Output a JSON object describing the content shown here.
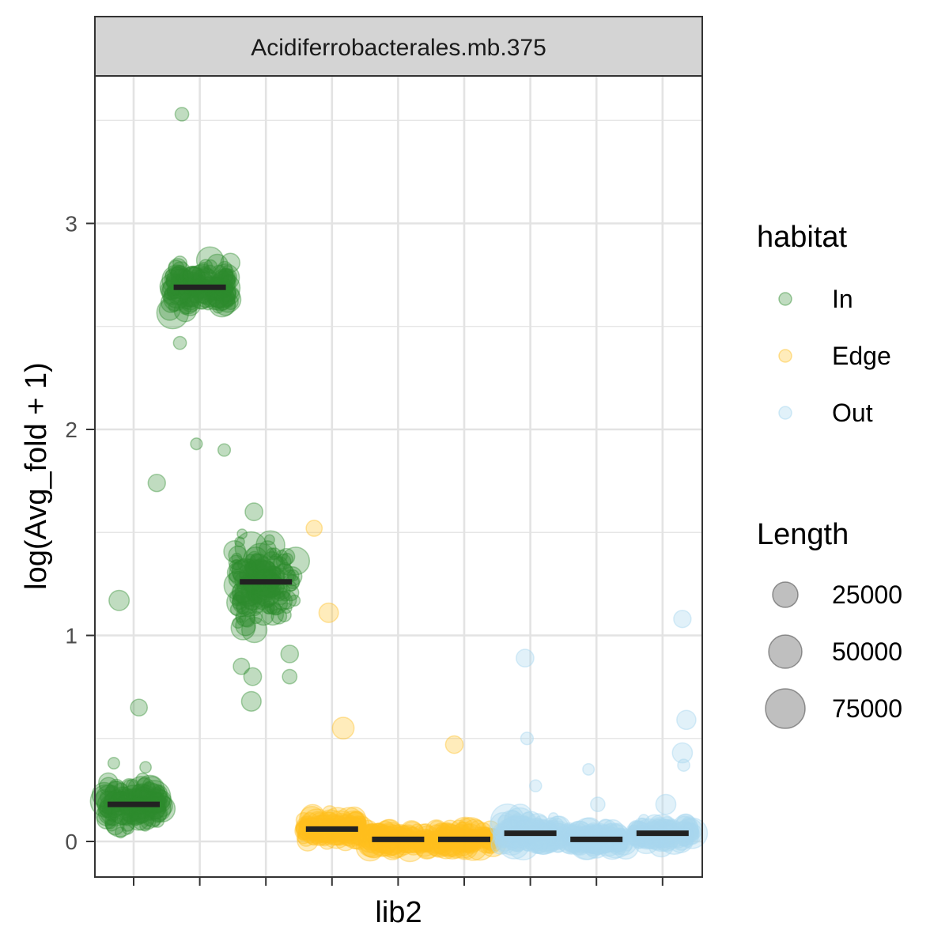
{
  "chart_data": {
    "type": "scatter",
    "facet_title": "Acidiferrobacterales.mb.375",
    "xlabel": "lib2",
    "ylabel": "log(Avg_fold + 1)",
    "categories": [
      "",
      "",
      "",
      "",
      "",
      "",
      "",
      "",
      ""
    ],
    "y_ticks": [
      0,
      1,
      2,
      3
    ],
    "y_tick_labels": [
      "0",
      "1",
      "2",
      "3"
    ],
    "ylim": [
      -0.17,
      3.7
    ],
    "grid": true,
    "legend_position": "right",
    "colors": {
      "In": "#2e8b2e",
      "Edge": "#ffbf1f",
      "Out": "#a8d8ef",
      "median": "#222222",
      "panel_border": "#333333",
      "grid": "#e3e3e3",
      "strip_fill": "#d4d4d4"
    },
    "legend": {
      "habitat_title": "habitat",
      "habitat_entries": [
        "In",
        "Edge",
        "Out"
      ],
      "length_title": "Length",
      "length_entries": [
        "25000",
        "50000",
        "75000"
      ]
    },
    "groups": [
      {
        "category_index": 0,
        "habitat": "In",
        "median": 0.18,
        "cluster_min": 0.01,
        "cluster_max": 0.3,
        "outliers": [
          [
            -0.22,
            1.17
          ],
          [
            0.08,
            0.65
          ],
          [
            -0.3,
            0.38
          ],
          [
            0.18,
            0.36
          ]
        ]
      },
      {
        "category_index": 1,
        "habitat": "In",
        "median": 2.69,
        "cluster_min": 2.5,
        "cluster_max": 2.85,
        "outliers": [
          [
            -0.27,
            3.53
          ],
          [
            -0.65,
            1.74
          ],
          [
            -0.05,
            1.93
          ],
          [
            0.37,
            1.9
          ],
          [
            -0.3,
            2.42
          ]
        ]
      },
      {
        "category_index": 2,
        "habitat": "In",
        "median": 1.26,
        "cluster_min": 0.98,
        "cluster_max": 1.55,
        "outliers": [
          [
            -0.18,
            1.6
          ],
          [
            -0.37,
            0.85
          ],
          [
            -0.2,
            0.8
          ],
          [
            -0.22,
            0.68
          ],
          [
            0.36,
            0.8
          ],
          [
            0.36,
            0.91
          ]
        ]
      },
      {
        "category_index": 3,
        "habitat": "Edge",
        "median": 0.06,
        "cluster_min": -0.02,
        "cluster_max": 0.14,
        "outliers": [
          [
            -0.27,
            1.52
          ],
          [
            -0.05,
            1.11
          ],
          [
            0.17,
            0.55
          ]
        ]
      },
      {
        "category_index": 4,
        "habitat": "Edge",
        "median": 0.01,
        "cluster_min": -0.03,
        "cluster_max": 0.12,
        "outliers": [
          [
            0.85,
            0.47
          ]
        ]
      },
      {
        "category_index": 5,
        "habitat": "Edge",
        "median": 0.01,
        "cluster_min": -0.03,
        "cluster_max": 0.14,
        "outliers": []
      },
      {
        "category_index": 6,
        "habitat": "Out",
        "median": 0.04,
        "cluster_min": -0.03,
        "cluster_max": 0.2,
        "outliers": [
          [
            -0.08,
            0.89
          ],
          [
            -0.05,
            0.5
          ],
          [
            0.08,
            0.27
          ]
        ]
      },
      {
        "category_index": 7,
        "habitat": "Out",
        "median": 0.01,
        "cluster_min": -0.03,
        "cluster_max": 0.12,
        "outliers": [
          [
            -0.12,
            0.35
          ],
          [
            0.02,
            0.18
          ]
        ]
      },
      {
        "category_index": 8,
        "habitat": "Out",
        "median": 0.04,
        "cluster_min": -0.03,
        "cluster_max": 0.12,
        "outliers": [
          [
            0.3,
            1.08
          ],
          [
            0.36,
            0.59
          ],
          [
            0.3,
            0.43
          ],
          [
            0.32,
            0.37
          ],
          [
            0.05,
            0.18
          ]
        ]
      }
    ]
  }
}
